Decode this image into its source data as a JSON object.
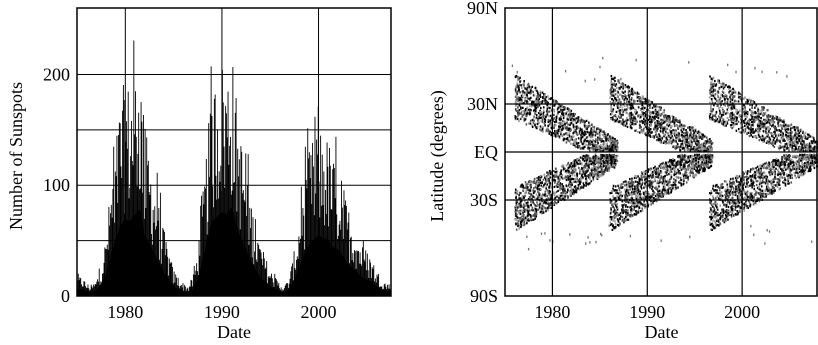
{
  "chart_data": [
    {
      "type": "bar",
      "title": "",
      "xlabel": "Date",
      "ylabel": "Number of Sunspots",
      "xlim": [
        1975,
        2007.5
      ],
      "ylim": [
        0,
        260
      ],
      "x_ticks": [
        {
          "value": 1980,
          "label": "1980"
        },
        {
          "value": 1990,
          "label": "1990"
        },
        {
          "value": 2000,
          "label": "2000"
        }
      ],
      "y_ticks": [
        {
          "value": 0,
          "label": "0"
        },
        {
          "value": 100,
          "label": "100"
        },
        {
          "value": 200,
          "label": "200"
        }
      ],
      "grid": true,
      "color": "#000000",
      "series": [
        {
          "description_of_values": "monthly sunspot counts",
          "x": [
            1975.5,
            1976.0,
            1976.5,
            1977.0,
            1977.5,
            1978.0,
            1978.5,
            1979.0,
            1979.5,
            1980.0,
            1980.5,
            1981.0,
            1981.5,
            1982.0,
            1982.5,
            1983.0,
            1983.5,
            1984.0,
            1984.5,
            1985.0,
            1985.5,
            1986.0,
            1986.5,
            1987.0,
            1987.5,
            1988.0,
            1988.5,
            1989.0,
            1989.5,
            1990.0,
            1990.5,
            1991.0,
            1991.5,
            1992.0,
            1992.5,
            1993.0,
            1993.5,
            1994.0,
            1994.5,
            1995.0,
            1995.5,
            1996.0,
            1996.5,
            1997.0,
            1997.5,
            1998.0,
            1998.5,
            1999.0,
            1999.5,
            2000.0,
            2000.5,
            2001.0,
            2001.5,
            2002.0,
            2002.5,
            2003.0,
            2003.5,
            2004.0,
            2004.5,
            2005.0,
            2005.5,
            2006.0,
            2006.5,
            2007.0
          ],
          "values": [
            15,
            10,
            8,
            12,
            25,
            45,
            85,
            120,
            150,
            165,
            160,
            175,
            185,
            130,
            110,
            90,
            70,
            50,
            35,
            20,
            15,
            10,
            8,
            15,
            35,
            75,
            120,
            160,
            170,
            180,
            175,
            190,
            150,
            120,
            100,
            75,
            55,
            40,
            30,
            20,
            15,
            10,
            8,
            15,
            35,
            60,
            90,
            110,
            120,
            130,
            125,
            120,
            105,
            100,
            85,
            70,
            60,
            50,
            40,
            35,
            30,
            20,
            15,
            10
          ]
        }
      ]
    },
    {
      "type": "scatter",
      "title": "",
      "xlabel": "Date",
      "ylabel": "Latitude (degrees)",
      "xlim": [
        1975,
        2008
      ],
      "ylim": [
        -90,
        90
      ],
      "x_ticks": [
        {
          "value": 1980,
          "label": "1980"
        },
        {
          "value": 1990,
          "label": "1990"
        },
        {
          "value": 2000,
          "label": "2000"
        }
      ],
      "y_ticks": [
        {
          "value": 90,
          "label": "90N"
        },
        {
          "value": 30,
          "label": "30N"
        },
        {
          "value": 0,
          "label": "EQ"
        },
        {
          "value": -30,
          "label": "30S"
        },
        {
          "value": -90,
          "label": "90S"
        }
      ],
      "grid": true,
      "color": "#000000",
      "series": [
        {
          "description_of_values": "sunspot latitudes by date (butterfly diagram)",
          "cycles": [
            {
              "start": 1976.0,
              "end": 1986.8,
              "lat_start": 40,
              "lat_end": 5
            },
            {
              "start": 1986.0,
              "end": 1996.8,
              "lat_start": 40,
              "lat_end": 5
            },
            {
              "start": 1996.5,
              "end": 2008.0,
              "lat_start": 40,
              "lat_end": 5
            }
          ]
        }
      ]
    }
  ]
}
